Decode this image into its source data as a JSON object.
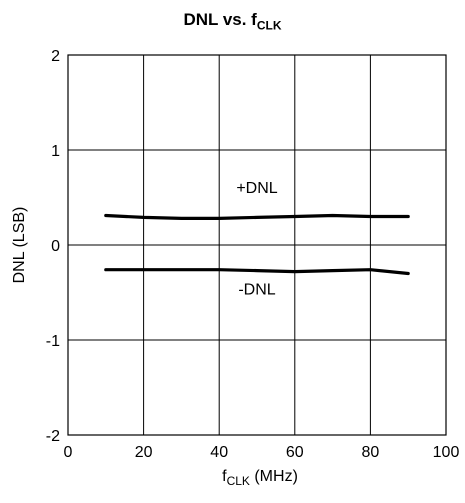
{
  "chart_data": {
    "type": "line",
    "title": {
      "main": "DNL vs. f",
      "sub": "CLK"
    },
    "xlabel": {
      "main": "f",
      "sub": "CLK",
      "rest": " (MHz)"
    },
    "ylabel": "DNL (LSB)",
    "xlim": [
      0,
      100
    ],
    "ylim": [
      -2,
      2
    ],
    "x_ticks": [
      0,
      20,
      40,
      60,
      80,
      100
    ],
    "y_ticks": [
      2,
      1,
      0,
      -1,
      -2
    ],
    "grid": true,
    "legend": "none",
    "series": [
      {
        "name": "+DNL",
        "x": [
          10,
          20,
          30,
          40,
          50,
          60,
          70,
          80,
          90
        ],
        "y": [
          0.31,
          0.29,
          0.28,
          0.28,
          0.29,
          0.3,
          0.31,
          0.3,
          0.3
        ]
      },
      {
        "name": "-DNL",
        "x": [
          10,
          20,
          30,
          40,
          50,
          60,
          70,
          80,
          90
        ],
        "y": [
          -0.26,
          -0.26,
          -0.26,
          -0.26,
          -0.27,
          -0.28,
          -0.27,
          -0.26,
          -0.3
        ]
      }
    ],
    "annotations": [
      {
        "text": "+DNL",
        "x": 50,
        "y": 0.55
      },
      {
        "text": "-DNL",
        "x": 50,
        "y": -0.52
      }
    ],
    "line_color": "#000000"
  }
}
